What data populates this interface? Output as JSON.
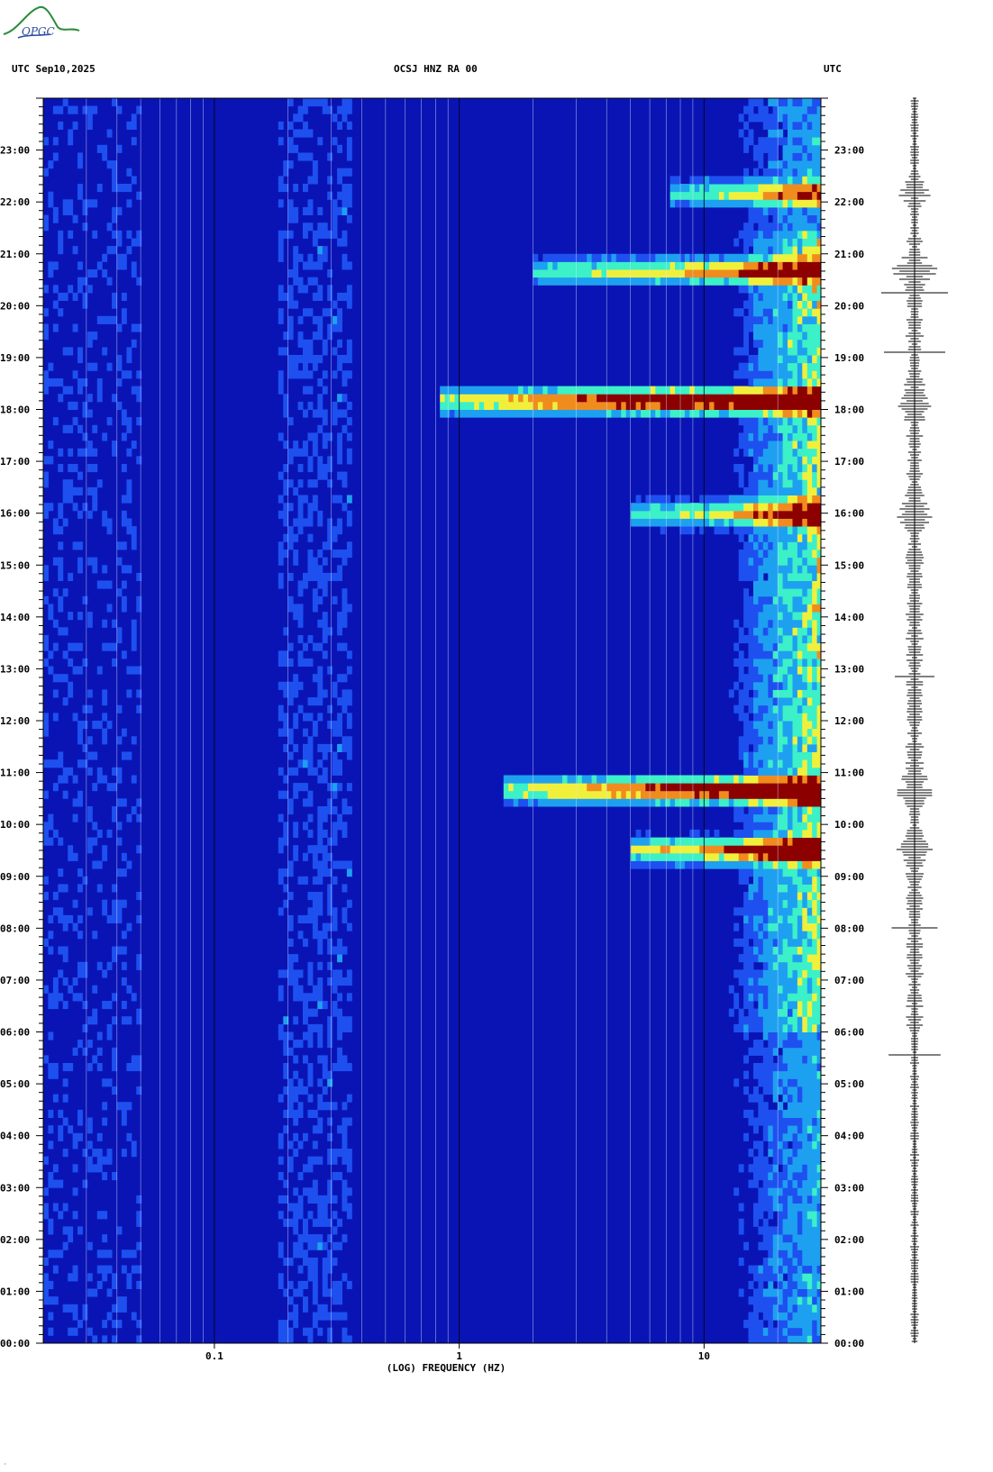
{
  "header": {
    "left": "UTC  Sep10,2025",
    "center": "OCSJ HNZ RA 00",
    "right": "UTC"
  },
  "logo": {
    "text": "OPGC",
    "color": "#2c8c3c"
  },
  "chart_data": {
    "type": "heatmap",
    "title": "OCSJ HNZ RA 00",
    "xlabel": "(LOG) FREQUENCY (HZ)",
    "xscale": "log",
    "xlim": [
      0.02,
      30
    ],
    "x_tick_labels": [
      {
        "value": 0.1,
        "label": "0.1"
      },
      {
        "value": 1,
        "label": "1"
      },
      {
        "value": 10,
        "label": "10"
      }
    ],
    "ylabel": "UTC",
    "y_tick_labels": [
      "00:00",
      "01:00",
      "02:00",
      "03:00",
      "04:00",
      "05:00",
      "06:00",
      "07:00",
      "08:00",
      "09:00",
      "10:00",
      "11:00",
      "12:00",
      "13:00",
      "14:00",
      "15:00",
      "16:00",
      "17:00",
      "18:00",
      "19:00",
      "20:00",
      "21:00",
      "22:00",
      "23:00"
    ],
    "colorscale": [
      "#0a14b4",
      "#1e50f0",
      "#1ea0f0",
      "#3cf0c8",
      "#f0f03c",
      "#f08c1e",
      "#8c0000"
    ],
    "background_color": "#0a14b4",
    "high_energy_events_utc": [
      {
        "time": "10:40",
        "fmin": 1.5,
        "intensity": "very high"
      },
      {
        "time": "09:30",
        "fmin": 5,
        "intensity": "very high"
      },
      {
        "time": "18:10",
        "fmin": 0.8,
        "intensity": "very high"
      },
      {
        "time": "16:00",
        "fmin": 5,
        "intensity": "high"
      },
      {
        "time": "20:40",
        "fmin": 2,
        "intensity": "high"
      },
      {
        "time": "22:10",
        "fmin": 7,
        "intensity": "high"
      }
    ],
    "seismogram": "vertical trace on the right, largest bursts near 10:40, 16:10, 12:35"
  },
  "footer": {
    "corner_mark": "·"
  }
}
